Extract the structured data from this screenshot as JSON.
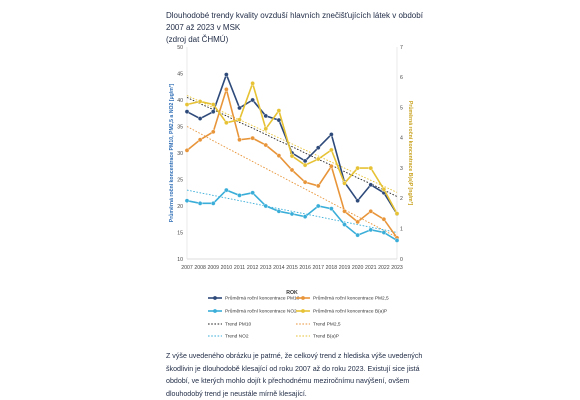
{
  "heading": {
    "line1": "Dlouhodobé trendy kvality ovzduší hlavních znečišťujících látek v období 2007 až 2023 v MSK",
    "line2": "(zdroj dat ČHMÚ)"
  },
  "caption": "Z výše uvedeného obrázku je patrné, že celkový trend z hlediska výše uvedených škodlivin je dlouhodobě klesající od roku 2007 až do roku 2023. Existují sice jistá období, ve kterých mohlo dojít k přechodnému meziročnímu navýšení, ovšem dlouhodobý trend je neustále mírně klesající.",
  "chart_data": {
    "type": "line",
    "x": [
      2007,
      2008,
      2009,
      2010,
      2011,
      2012,
      2013,
      2014,
      2015,
      2016,
      2017,
      2018,
      2019,
      2020,
      2021,
      2022,
      2023
    ],
    "xlabel": "ROK",
    "ylabel_left": "Průměrná roční koncentrace PM10, PM2,5 a NO2 [µg/m³]",
    "ylabel_right": "Průměrná roční koncentrace B(a)P [ng/m³]",
    "ylim_left": [
      10,
      50
    ],
    "ylim_right": [
      0,
      7
    ],
    "yticks_left": [
      10,
      15,
      20,
      25,
      30,
      35,
      40,
      45,
      50
    ],
    "yticks_right": [
      0,
      1,
      2,
      3,
      4,
      5,
      6,
      7
    ],
    "grid": false,
    "legend_position": "bottom",
    "series": [
      {
        "name": "Průměrná roční koncentrace PM10",
        "axis": "left",
        "color": "#2e4a7a",
        "values": [
          37.8,
          36.5,
          37.8,
          44.8,
          38.5,
          40.0,
          37.0,
          36.2,
          30.0,
          28.5,
          31.0,
          33.5,
          24.5,
          21.0,
          24.0,
          22.5,
          18.5
        ]
      },
      {
        "name": "Průměrná roční koncentrace PM2,5",
        "axis": "left",
        "color": "#e8953a",
        "values": [
          30.5,
          32.5,
          34.0,
          42.0,
          32.5,
          32.8,
          31.5,
          29.5,
          26.8,
          24.5,
          23.8,
          27.5,
          19.0,
          17.0,
          19.0,
          17.5,
          14.0
        ]
      },
      {
        "name": "Průměrná roční koncentrace NO2",
        "axis": "left",
        "color": "#3aaed8",
        "values": [
          21.0,
          20.5,
          20.5,
          23.0,
          22.0,
          22.5,
          20.0,
          19.0,
          18.5,
          18.0,
          20.0,
          19.5,
          16.5,
          14.5,
          15.5,
          15.0,
          13.5
        ]
      },
      {
        "name": "Průměrná roční koncentrace B(a)P",
        "axis": "right",
        "color": "#e6c234",
        "values": [
          5.1,
          5.2,
          5.1,
          4.5,
          4.6,
          5.8,
          4.3,
          4.9,
          3.4,
          3.1,
          3.3,
          3.6,
          2.5,
          3.0,
          3.0,
          2.3,
          1.5
        ]
      },
      {
        "name": "Trend PM10",
        "axis": "left",
        "color": "#222222",
        "style": "dotted",
        "values": [
          40.5,
          39.3,
          38.2,
          37.0,
          35.8,
          34.7,
          33.5,
          32.3,
          31.2,
          30.0,
          28.8,
          27.7,
          26.5,
          25.3,
          24.2,
          23.0,
          21.8
        ]
      },
      {
        "name": "Trend PM2,5",
        "axis": "left",
        "color": "#e8953a",
        "style": "dotted",
        "values": [
          35.0,
          33.7,
          32.3,
          31.0,
          29.7,
          28.4,
          27.1,
          25.8,
          24.5,
          23.2,
          21.9,
          20.6,
          19.3,
          18.0,
          16.7,
          15.4,
          14.1
        ]
      },
      {
        "name": "Trend NO2",
        "axis": "left",
        "color": "#3aaed8",
        "style": "dotted",
        "values": [
          23.0,
          22.5,
          22.0,
          21.5,
          21.0,
          20.5,
          20.0,
          19.5,
          19.0,
          18.5,
          18.0,
          17.5,
          17.0,
          16.5,
          16.0,
          15.5,
          15.0
        ]
      },
      {
        "name": "Trend B(a)P",
        "axis": "right",
        "color": "#e6c234",
        "style": "dotted",
        "values": [
          5.4,
          5.2,
          5.0,
          4.8,
          4.6,
          4.4,
          4.2,
          4.0,
          3.8,
          3.6,
          3.4,
          3.2,
          3.0,
          2.8,
          2.6,
          2.4,
          2.2
        ]
      }
    ]
  }
}
